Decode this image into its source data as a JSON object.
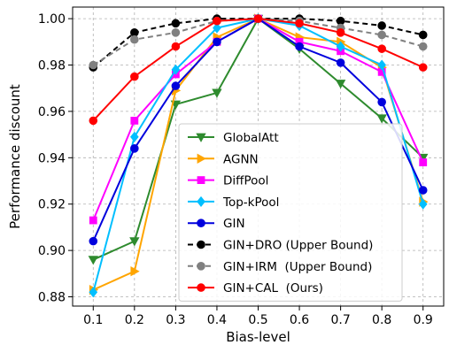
{
  "chart_data": {
    "type": "line",
    "xlabel": "Bias-level",
    "ylabel": "Performance discount",
    "x": [
      0.1,
      0.2,
      0.3,
      0.4,
      0.5,
      0.6,
      0.7,
      0.8,
      0.9
    ],
    "x_tick_labels": [
      "0.1",
      "0.2",
      "0.3",
      "0.4",
      "0.5",
      "0.6",
      "0.7",
      "0.8",
      "0.9"
    ],
    "xlim": [
      0.05,
      0.95
    ],
    "ylim": [
      0.876,
      1.005
    ],
    "y_ticks": [
      0.88,
      0.9,
      0.92,
      0.94,
      0.96,
      0.98,
      1.0
    ],
    "y_tick_labels": [
      "0.88",
      "0.90",
      "0.92",
      "0.94",
      "0.96",
      "0.98",
      "1.00"
    ],
    "grid": true,
    "grid_style": "dashed",
    "legend_position": "bottom-center",
    "series": [
      {
        "name": "GlobalAtt",
        "color": "#2e8b2e",
        "marker": "triangle-down",
        "dash": "solid",
        "values": [
          0.896,
          0.904,
          0.963,
          0.968,
          1.0,
          0.987,
          0.972,
          0.957,
          0.94
        ]
      },
      {
        "name": "AGNN",
        "color": "#ffa500",
        "marker": "triangle-right",
        "dash": "solid",
        "values": [
          0.883,
          0.891,
          0.969,
          0.992,
          1.0,
          0.992,
          0.99,
          0.979,
          0.921
        ]
      },
      {
        "name": "DiffPool",
        "color": "#ff00ff",
        "marker": "square",
        "dash": "solid",
        "values": [
          0.913,
          0.956,
          0.976,
          0.99,
          1.0,
          0.99,
          0.986,
          0.977,
          0.938
        ]
      },
      {
        "name": "Top-kPool",
        "color": "#00bfff",
        "marker": "diamond",
        "dash": "solid",
        "values": [
          0.882,
          0.949,
          0.978,
          0.996,
          1.0,
          0.997,
          0.988,
          0.98,
          0.92
        ]
      },
      {
        "name": "GIN",
        "color": "#0000dd",
        "marker": "circle",
        "dash": "solid",
        "values": [
          0.904,
          0.944,
          0.971,
          0.99,
          1.0,
          0.988,
          0.981,
          0.964,
          0.926
        ]
      },
      {
        "name": "GIN+DRO (Upper Bound)",
        "color": "#000000",
        "marker": "circle",
        "dash": "dashed",
        "values": [
          0.979,
          0.994,
          0.998,
          1.0,
          1.0,
          1.0,
          0.999,
          0.997,
          0.993
        ]
      },
      {
        "name": "GIN+IRM  (Upper Bound)",
        "color": "#808080",
        "marker": "circle",
        "dash": "dashed",
        "values": [
          0.98,
          0.991,
          0.994,
          0.999,
          1.0,
          0.999,
          0.996,
          0.993,
          0.988
        ]
      },
      {
        "name": "GIN+CAL  (Ours)",
        "color": "#ff0000",
        "marker": "circle",
        "dash": "solid",
        "values": [
          0.956,
          0.975,
          0.988,
          0.999,
          1.0,
          0.998,
          0.994,
          0.987,
          0.979
        ]
      }
    ]
  }
}
